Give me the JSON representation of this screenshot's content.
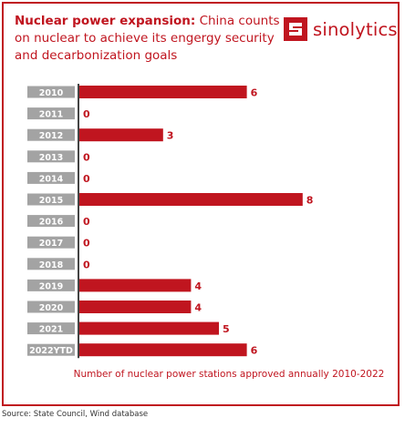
{
  "header": {
    "title_bold": "Nuclear power expansion:",
    "title_rest": " China counts on nuclear to achieve its engergy security and decarbonization goals"
  },
  "brand": {
    "name": "sinolytics",
    "icon": "sinolytics-logo-icon"
  },
  "colors": {
    "accent": "#c0151f",
    "label_bg": "#a3a3a3",
    "axis": "#444444"
  },
  "chart_data": {
    "type": "bar",
    "orientation": "horizontal",
    "categories": [
      "2010",
      "2011",
      "2012",
      "2013",
      "2014",
      "2015",
      "2016",
      "2017",
      "2018",
      "2019",
      "2020",
      "2021",
      "2022YTD"
    ],
    "values": [
      6,
      0,
      3,
      0,
      0,
      8,
      0,
      0,
      0,
      4,
      4,
      5,
      6
    ],
    "xlim": [
      0,
      8
    ],
    "grid": false,
    "caption": "Number of nuclear power stations approved annually 2010-2022"
  },
  "source": "Source: State Council, Wind database"
}
